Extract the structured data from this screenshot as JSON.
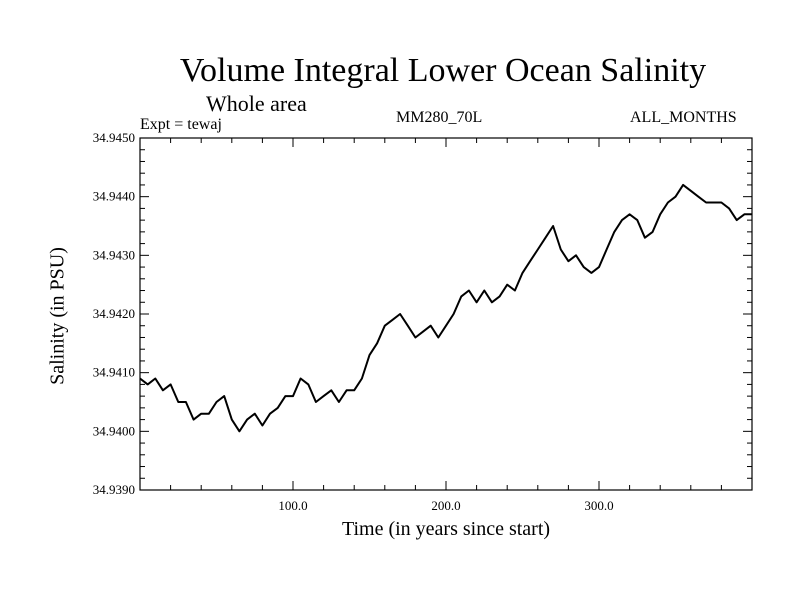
{
  "header": {
    "title": "Volume Integral Lower Ocean Salinity",
    "subtitle": "Whole area",
    "expt": "Expt = tewaj",
    "center_label": "MM280_70L",
    "right_label": "ALL_MONTHS"
  },
  "chart_data": {
    "type": "line",
    "title": "Volume Integral Lower Ocean Salinity",
    "subtitle": "Whole area",
    "xlabel": "Time (in years since start)",
    "ylabel": "Salinity (in PSU)",
    "xlim": [
      0,
      400
    ],
    "ylim": [
      34.939,
      34.945
    ],
    "x_ticks": [
      100,
      200,
      300
    ],
    "x_tick_labels": [
      "100.0",
      "200.0",
      "300.0"
    ],
    "y_ticks": [
      34.939,
      34.94,
      34.941,
      34.942,
      34.943,
      34.944,
      34.945
    ],
    "y_tick_labels": [
      "34.9390",
      "34.9400",
      "34.9410",
      "34.9420",
      "34.9430",
      "34.9440",
      "34.9450"
    ],
    "grid": false,
    "series": [
      {
        "color": "#000000",
        "x": [
          0,
          5,
          10,
          15,
          20,
          25,
          30,
          35,
          40,
          45,
          50,
          55,
          60,
          65,
          70,
          75,
          80,
          85,
          90,
          95,
          100,
          105,
          110,
          115,
          120,
          125,
          130,
          135,
          140,
          145,
          150,
          155,
          160,
          165,
          170,
          175,
          180,
          185,
          190,
          195,
          200,
          205,
          210,
          215,
          220,
          225,
          230,
          235,
          240,
          245,
          250,
          255,
          260,
          265,
          270,
          275,
          280,
          285,
          290,
          295,
          300,
          305,
          310,
          315,
          320,
          325,
          330,
          335,
          340,
          345,
          350,
          355,
          360,
          365,
          370,
          375,
          380,
          385,
          390,
          395,
          400
        ],
        "y": [
          34.9409,
          34.9408,
          34.9409,
          34.9407,
          34.9408,
          34.9405,
          34.9405,
          34.9402,
          34.9403,
          34.9403,
          34.9405,
          34.9406,
          34.9402,
          34.94,
          34.9402,
          34.9403,
          34.9401,
          34.9403,
          34.9404,
          34.9406,
          34.9406,
          34.9409,
          34.9408,
          34.9405,
          34.9406,
          34.9407,
          34.9405,
          34.9407,
          34.9407,
          34.9409,
          34.9413,
          34.9415,
          34.9418,
          34.9419,
          34.942,
          34.9418,
          34.9416,
          34.9417,
          34.9418,
          34.9416,
          34.9418,
          34.942,
          34.9423,
          34.9424,
          34.9422,
          34.9424,
          34.9422,
          34.9423,
          34.9425,
          34.9424,
          34.9427,
          34.9429,
          34.9431,
          34.9433,
          34.9435,
          34.9431,
          34.9429,
          34.943,
          34.9428,
          34.9427,
          34.9428,
          34.9431,
          34.9434,
          34.9436,
          34.9437,
          34.9436,
          34.9433,
          34.9434,
          34.9437,
          34.9439,
          34.944,
          34.9442,
          34.9441,
          34.944,
          34.9439,
          34.9439,
          34.9439,
          34.9438,
          34.9436,
          34.9437,
          34.9437
        ]
      }
    ]
  }
}
